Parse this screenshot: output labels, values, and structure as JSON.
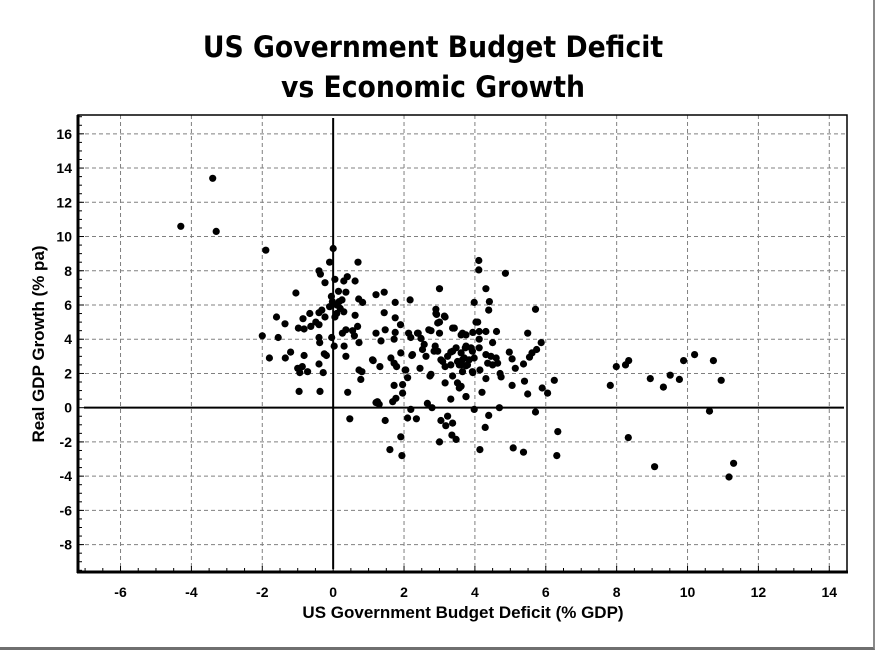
{
  "chart_data": {
    "type": "scatter",
    "title": [
      "US Government Budget Deficit",
      "vs Economic Growth"
    ],
    "xlabel": "US Government Budget Deficit (% GDP)",
    "ylabel": "Real GDP Growth (% pa)",
    "xlim": [
      -7.2,
      14.5
    ],
    "ylim": [
      -9.6,
      17.1
    ],
    "xticks": [
      -6,
      -4,
      -2,
      0,
      2,
      4,
      6,
      8,
      10,
      12,
      14
    ],
    "yticks": [
      16,
      14,
      12,
      10,
      8,
      6,
      4,
      2,
      0,
      -2,
      -4,
      -6,
      -8
    ],
    "grid": true,
    "zero_lines": true,
    "marker_color": "#000000",
    "points": [
      [
        -3.4,
        13.4
      ],
      [
        -4.3,
        10.6
      ],
      [
        -3.3,
        10.3
      ],
      [
        -1.9,
        9.2
      ],
      [
        -1.6,
        5.3
      ],
      [
        -2.0,
        4.2
      ],
      [
        -1.55,
        4.1
      ],
      [
        -1.8,
        2.9
      ],
      [
        -1.35,
        2.9
      ],
      [
        -1.2,
        3.25
      ],
      [
        -1.36,
        4.9
      ],
      [
        -0.85,
        5.2
      ],
      [
        -0.66,
        5.5
      ],
      [
        -0.4,
        5.55
      ],
      [
        -0.32,
        5.7
      ],
      [
        -0.98,
        4.65
      ],
      [
        -0.82,
        4.6
      ],
      [
        -0.63,
        4.75
      ],
      [
        -0.49,
        5.0
      ],
      [
        -0.4,
        4.85
      ],
      [
        -0.23,
        5.3
      ],
      [
        -0.4,
        4.1
      ],
      [
        -0.38,
        3.8
      ],
      [
        -0.04,
        4.1
      ],
      [
        0.03,
        3.6
      ],
      [
        -0.82,
        3.05
      ],
      [
        -0.25,
        3.15
      ],
      [
        -0.19,
        3.05
      ],
      [
        -1.0,
        2.3
      ],
      [
        -0.87,
        2.4
      ],
      [
        -0.94,
        2.05
      ],
      [
        -0.72,
        2.1
      ],
      [
        -0.4,
        2.55
      ],
      [
        -0.28,
        2.05
      ],
      [
        -0.96,
        0.95
      ],
      [
        -0.37,
        0.95
      ],
      [
        0.41,
        0.9
      ],
      [
        0.47,
        -0.65
      ],
      [
        0.0,
        9.3
      ],
      [
        -0.1,
        8.5
      ],
      [
        0.7,
        8.5
      ],
      [
        -0.4,
        8.0
      ],
      [
        -0.36,
        7.8
      ],
      [
        -0.23,
        7.3
      ],
      [
        0.05,
        7.5
      ],
      [
        0.4,
        7.65
      ],
      [
        0.3,
        7.4
      ],
      [
        0.62,
        7.4
      ],
      [
        -1.05,
        6.7
      ],
      [
        0.15,
        6.8
      ],
      [
        0.36,
        6.75
      ],
      [
        -0.02,
        6.2
      ],
      [
        0.17,
        6.2
      ],
      [
        0.25,
        6.3
      ],
      [
        0.72,
        6.35
      ],
      [
        0.83,
        6.15
      ],
      [
        -0.05,
        6.5
      ],
      [
        0.1,
        6.0
      ],
      [
        0.2,
        5.8
      ],
      [
        -0.1,
        5.9
      ],
      [
        0.3,
        5.6
      ],
      [
        0.05,
        5.3
      ],
      [
        0.1,
        5.5
      ],
      [
        0.36,
        3.0
      ],
      [
        0.31,
        3.6
      ],
      [
        0.73,
        2.2
      ],
      [
        0.78,
        1.65
      ],
      [
        0.69,
        4.75
      ],
      [
        0.73,
        3.8
      ],
      [
        0.62,
        5.4
      ],
      [
        0.36,
        4.55
      ],
      [
        0.26,
        4.35
      ],
      [
        0.55,
        4.5
      ],
      [
        0.6,
        4.2
      ],
      [
        1.21,
        4.35
      ],
      [
        1.13,
        2.75
      ],
      [
        1.21,
        0.3
      ],
      [
        1.21,
        6.6
      ],
      [
        1.44,
        6.75
      ],
      [
        1.75,
        6.15
      ],
      [
        2.17,
        6.3
      ],
      [
        3.0,
        6.95
      ],
      [
        1.44,
        5.55
      ],
      [
        1.75,
        5.25
      ],
      [
        1.9,
        4.85
      ],
      [
        1.47,
        4.55
      ],
      [
        1.75,
        4.4
      ],
      [
        1.72,
        4.0
      ],
      [
        1.35,
        3.9
      ],
      [
        2.13,
        4.35
      ],
      [
        2.19,
        4.1
      ],
      [
        2.4,
        4.35
      ],
      [
        2.48,
        4.05
      ],
      [
        2.7,
        4.55
      ],
      [
        3.0,
        4.35
      ],
      [
        2.9,
        5.75
      ],
      [
        2.92,
        5.45
      ],
      [
        3.16,
        5.3
      ],
      [
        3.0,
        5.0
      ],
      [
        3.42,
        4.65
      ],
      [
        3.98,
        6.15
      ],
      [
        4.03,
        5.0
      ],
      [
        2.52,
        3.4
      ],
      [
        2.62,
        3.0
      ],
      [
        2.88,
        3.6
      ],
      [
        2.95,
        3.3
      ],
      [
        2.22,
        3.05
      ],
      [
        1.91,
        3.2
      ],
      [
        1.63,
        2.9
      ],
      [
        1.72,
        2.6
      ],
      [
        1.79,
        2.4
      ],
      [
        1.11,
        2.8
      ],
      [
        1.32,
        2.4
      ],
      [
        2.45,
        2.3
      ],
      [
        2.03,
        2.2
      ],
      [
        0.81,
        2.1
      ],
      [
        2.1,
        1.75
      ],
      [
        1.96,
        1.35
      ],
      [
        2.73,
        1.85
      ],
      [
        3.16,
        1.45
      ],
      [
        1.72,
        1.3
      ],
      [
        1.96,
        0.85
      ],
      [
        1.77,
        0.55
      ],
      [
        1.68,
        0.35
      ],
      [
        1.25,
        0.35
      ],
      [
        1.3,
        0.2
      ],
      [
        3.32,
        0.5
      ],
      [
        2.66,
        0.25
      ],
      [
        2.79,
        0.0
      ],
      [
        2.19,
        -0.1
      ],
      [
        2.1,
        -0.6
      ],
      [
        2.35,
        -0.65
      ],
      [
        1.47,
        -0.75
      ],
      [
        3.04,
        -0.75
      ],
      [
        3.23,
        -0.5
      ],
      [
        3.18,
        -1.05
      ],
      [
        3.37,
        -0.9
      ],
      [
        3.35,
        -1.6
      ],
      [
        3.47,
        -1.85
      ],
      [
        1.91,
        -1.7
      ],
      [
        3.0,
        -2.0
      ],
      [
        1.6,
        -2.45
      ],
      [
        1.94,
        -2.8
      ],
      [
        3.51,
        1.45
      ],
      [
        3.56,
        1.15
      ],
      [
        3.75,
        0.65
      ],
      [
        3.98,
        -0.1
      ],
      [
        3.16,
        2.4
      ],
      [
        3.09,
        2.7
      ],
      [
        3.32,
        3.25
      ],
      [
        3.47,
        3.5
      ],
      [
        3.56,
        2.5
      ],
      [
        3.65,
        2.8
      ],
      [
        3.79,
        2.5
      ],
      [
        3.73,
        3.5
      ],
      [
        3.93,
        3.3
      ],
      [
        3.93,
        2.1
      ],
      [
        2.9,
        5.5
      ],
      [
        2.95,
        4.95
      ],
      [
        3.14,
        5.35
      ],
      [
        3.37,
        4.65
      ],
      [
        2.38,
        4.35
      ],
      [
        2.57,
        3.7
      ],
      [
        2.76,
        4.5
      ],
      [
        2.85,
        3.3
      ],
      [
        2.24,
        3.1
      ],
      [
        3.04,
        2.8
      ],
      [
        3.23,
        3.0
      ],
      [
        3.37,
        3.3
      ],
      [
        3.65,
        4.35
      ],
      [
        3.61,
        3.2
      ],
      [
        3.51,
        2.7
      ],
      [
        3.32,
        2.5
      ],
      [
        2.05,
        2.2
      ],
      [
        2.76,
        1.95
      ],
      [
        3.37,
        1.85
      ],
      [
        3.65,
        2.1
      ],
      [
        4.11,
        8.6
      ],
      [
        4.11,
        8.05
      ],
      [
        4.86,
        7.85
      ],
      [
        4.31,
        6.95
      ],
      [
        4.41,
        6.2
      ],
      [
        4.39,
        5.7
      ],
      [
        5.71,
        5.75
      ],
      [
        4.08,
        5.0
      ],
      [
        4.61,
        4.45
      ],
      [
        5.49,
        4.35
      ],
      [
        4.31,
        4.45
      ],
      [
        4.12,
        4.45
      ],
      [
        3.94,
        4.4
      ],
      [
        3.75,
        4.25
      ],
      [
        3.61,
        4.25
      ],
      [
        4.5,
        3.8
      ],
      [
        4.12,
        4.0
      ],
      [
        4.12,
        3.5
      ],
      [
        3.89,
        3.5
      ],
      [
        3.75,
        3.6
      ],
      [
        5.87,
        3.8
      ],
      [
        5.74,
        3.4
      ],
      [
        5.61,
        3.2
      ],
      [
        5.54,
        2.95
      ],
      [
        4.97,
        3.25
      ],
      [
        5.05,
        2.85
      ],
      [
        5.37,
        2.55
      ],
      [
        5.14,
        2.3
      ],
      [
        4.31,
        3.1
      ],
      [
        4.45,
        3.0
      ],
      [
        4.6,
        2.9
      ],
      [
        4.36,
        2.6
      ],
      [
        4.5,
        2.5
      ],
      [
        4.64,
        2.6
      ],
      [
        3.98,
        2.9
      ],
      [
        3.84,
        2.8
      ],
      [
        3.7,
        2.9
      ],
      [
        3.61,
        2.5
      ],
      [
        3.75,
        2.45
      ],
      [
        3.94,
        2.05
      ],
      [
        4.14,
        2.2
      ],
      [
        4.71,
        2.0
      ],
      [
        4.74,
        1.8
      ],
      [
        4.31,
        1.7
      ],
      [
        6.24,
        1.6
      ],
      [
        5.4,
        1.55
      ],
      [
        5.05,
        1.3
      ],
      [
        5.9,
        1.15
      ],
      [
        6.05,
        0.85
      ],
      [
        5.49,
        0.8
      ],
      [
        4.2,
        0.9
      ],
      [
        3.75,
        0.65
      ],
      [
        3.61,
        1.25
      ],
      [
        4.69,
        0.0
      ],
      [
        5.71,
        -0.25
      ],
      [
        4.39,
        -0.45
      ],
      [
        4.29,
        -1.15
      ],
      [
        6.34,
        -1.4
      ],
      [
        4.14,
        -2.45
      ],
      [
        5.08,
        -2.35
      ],
      [
        5.37,
        -2.6
      ],
      [
        6.31,
        -2.8
      ],
      [
        7.82,
        1.3
      ],
      [
        7.99,
        2.4
      ],
      [
        8.25,
        2.5
      ],
      [
        8.34,
        2.75
      ],
      [
        8.95,
        1.7
      ],
      [
        9.32,
        1.2
      ],
      [
        9.51,
        1.9
      ],
      [
        9.77,
        1.65
      ],
      [
        9.89,
        2.75
      ],
      [
        10.2,
        3.1
      ],
      [
        10.73,
        2.75
      ],
      [
        10.95,
        1.6
      ],
      [
        10.62,
        -0.2
      ],
      [
        8.33,
        -1.75
      ],
      [
        9.07,
        -3.45
      ],
      [
        11.3,
        -3.25
      ],
      [
        11.17,
        -4.05
      ]
    ]
  }
}
